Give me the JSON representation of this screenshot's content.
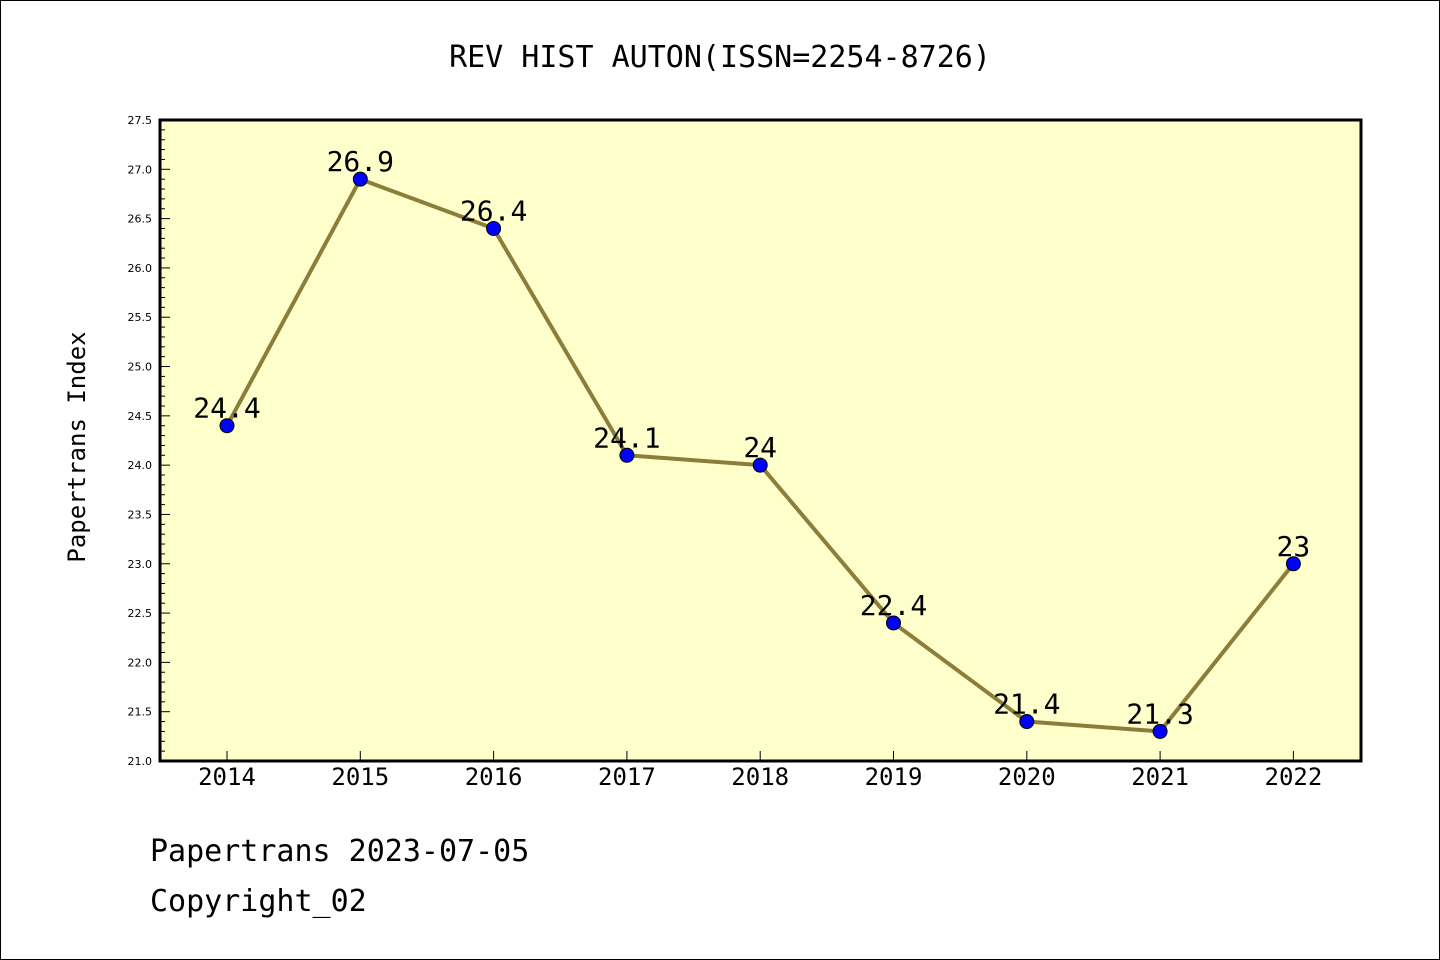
{
  "chart_data": {
    "type": "line",
    "title": "REV HIST AUTON(ISSN=2254-8726)",
    "xlabel": "",
    "ylabel": "Papertrans Index",
    "categories": [
      "2014",
      "2015",
      "2016",
      "2017",
      "2018",
      "2019",
      "2020",
      "2021",
      "2022"
    ],
    "series": [
      {
        "values": [
          24.4,
          26.9,
          26.4,
          24.1,
          24.0,
          22.4,
          21.4,
          21.3,
          23.0
        ],
        "labels": [
          "24.4",
          "26.9",
          "26.4",
          "24.1",
          "24",
          "22.4",
          "21.4",
          "21.3",
          "23"
        ]
      }
    ],
    "ylim": [
      21.0,
      27.5
    ],
    "yticks": [
      "21.0",
      "21.5",
      "22.0",
      "22.5",
      "23.0",
      "23.5",
      "24.0",
      "24.5",
      "25.0",
      "25.5",
      "26.0",
      "26.5",
      "27.0",
      "27.5"
    ],
    "grid": false,
    "legend": "none",
    "colors": {
      "plot_background": "#ffffcc",
      "line": "#8b7d3a",
      "marker": "#0000ff",
      "axis": "#000000"
    }
  },
  "footer": {
    "line1": "Papertrans 2023-07-05",
    "line2": "Copyright_02"
  }
}
